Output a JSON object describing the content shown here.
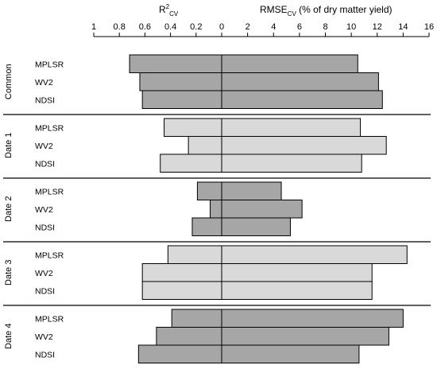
{
  "chart_data": {
    "type": "bar",
    "orientation": "horizontal-diverging",
    "left_axis": {
      "title": "R",
      "title_super": "2",
      "title_sub": "CV",
      "ticks": [
        "1",
        "0.8",
        "0.6",
        "0.4",
        "0.2",
        "0"
      ],
      "range": [
        1,
        0
      ]
    },
    "right_axis": {
      "title": "RMSE",
      "title_sub": "CV",
      "title_rest": " (% of dry matter yield)",
      "ticks": [
        "0",
        "2",
        "4",
        "6",
        "8",
        "10",
        "12",
        "14",
        "16"
      ],
      "range": [
        0,
        16
      ]
    },
    "groups": [
      {
        "name": "Common",
        "shade": "dark",
        "rows": [
          {
            "label": "MPLSR",
            "r2": 0.72,
            "rmse": 10.5
          },
          {
            "label": "WV2",
            "r2": 0.64,
            "rmse": 12.1
          },
          {
            "label": "NDSI",
            "r2": 0.62,
            "rmse": 12.4
          }
        ]
      },
      {
        "name": "Date 1",
        "shade": "light",
        "rows": [
          {
            "label": "MPLSR",
            "r2": 0.45,
            "rmse": 10.7
          },
          {
            "label": "WV2",
            "r2": 0.26,
            "rmse": 12.7
          },
          {
            "label": "NDSI",
            "r2": 0.48,
            "rmse": 10.8
          }
        ]
      },
      {
        "name": "Date 2",
        "shade": "dark",
        "rows": [
          {
            "label": "MPLSR",
            "r2": 0.19,
            "rmse": 4.6
          },
          {
            "label": "WV2",
            "r2": 0.09,
            "rmse": 6.2
          },
          {
            "label": "NDSI",
            "r2": 0.23,
            "rmse": 5.3
          }
        ]
      },
      {
        "name": "Date 3",
        "shade": "light",
        "rows": [
          {
            "label": "MPLSR",
            "r2": 0.42,
            "rmse": 14.3
          },
          {
            "label": "WV2",
            "r2": 0.62,
            "rmse": 11.6
          },
          {
            "label": "NDSI",
            "r2": 0.62,
            "rmse": 11.6
          }
        ]
      },
      {
        "name": "Date 4",
        "shade": "dark",
        "rows": [
          {
            "label": "MPLSR",
            "r2": 0.39,
            "rmse": 14.0
          },
          {
            "label": "WV2",
            "r2": 0.51,
            "rmse": 12.9
          },
          {
            "label": "NDSI",
            "r2": 0.65,
            "rmse": 10.6
          }
        ]
      }
    ],
    "colors": {
      "dark": "#a6a6a6",
      "light": "#d9d9d9",
      "stroke": "#000000"
    },
    "grid": false
  }
}
